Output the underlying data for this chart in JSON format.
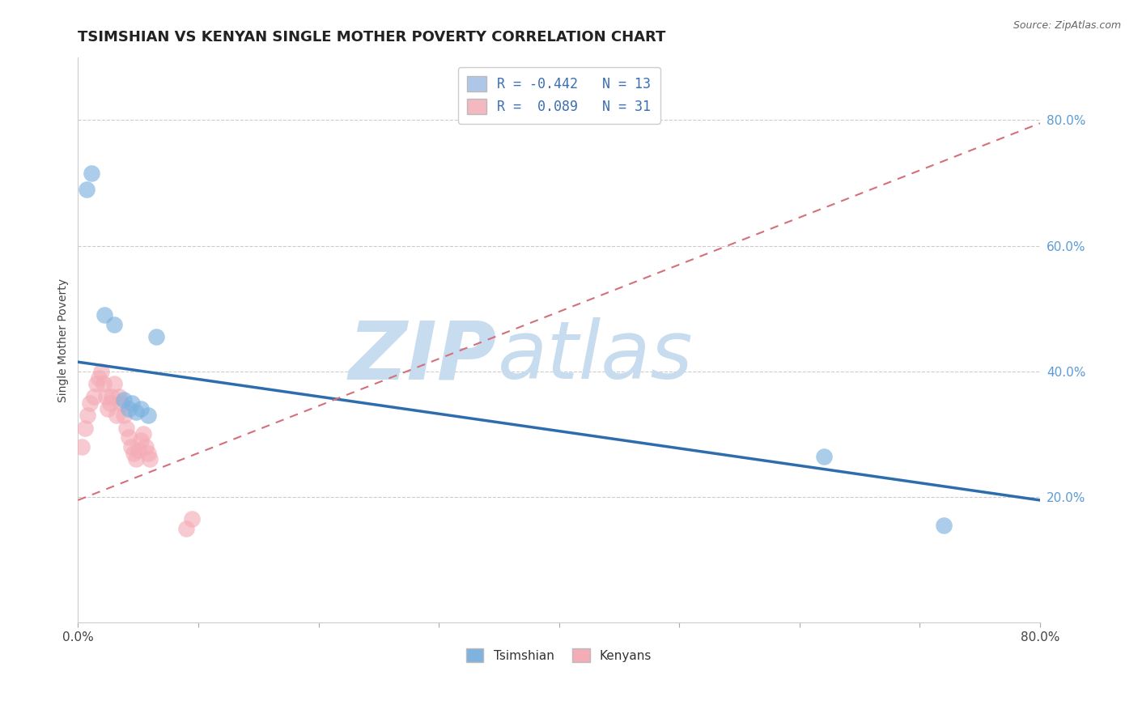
{
  "title": "TSIMSHIAN VS KENYAN SINGLE MOTHER POVERTY CORRELATION CHART",
  "source_text": "Source: ZipAtlas.com",
  "ylabel": "Single Mother Poverty",
  "watermark_zip": "ZIP",
  "watermark_atlas": "atlas",
  "xlim": [
    0.0,
    0.8
  ],
  "ylim": [
    0.0,
    0.9
  ],
  "ytick_right_labels": [
    "20.0%",
    "40.0%",
    "60.0%",
    "80.0%"
  ],
  "ytick_right_vals": [
    0.2,
    0.4,
    0.6,
    0.8
  ],
  "legend_r1": "R = -0.442   N = 13",
  "legend_r2": "R =  0.089   N = 31",
  "legend_color1": "#aec6e8",
  "legend_color2": "#f4b8c1",
  "tsimshian_x": [
    0.007,
    0.011,
    0.022,
    0.03,
    0.038,
    0.042,
    0.045,
    0.048,
    0.052,
    0.058,
    0.065,
    0.62,
    0.72
  ],
  "tsimshian_y": [
    0.69,
    0.715,
    0.49,
    0.475,
    0.355,
    0.34,
    0.35,
    0.335,
    0.34,
    0.33,
    0.455,
    0.265,
    0.155
  ],
  "kenyan_x": [
    0.003,
    0.006,
    0.008,
    0.01,
    0.013,
    0.015,
    0.017,
    0.019,
    0.021,
    0.023,
    0.025,
    0.027,
    0.028,
    0.03,
    0.032,
    0.034,
    0.036,
    0.038,
    0.04,
    0.042,
    0.044,
    0.046,
    0.048,
    0.05,
    0.052,
    0.054,
    0.056,
    0.058,
    0.06,
    0.09,
    0.095
  ],
  "kenyan_y": [
    0.28,
    0.31,
    0.33,
    0.35,
    0.36,
    0.38,
    0.39,
    0.4,
    0.38,
    0.36,
    0.34,
    0.35,
    0.36,
    0.38,
    0.33,
    0.36,
    0.35,
    0.33,
    0.31,
    0.295,
    0.28,
    0.27,
    0.26,
    0.275,
    0.29,
    0.3,
    0.28,
    0.27,
    0.26,
    0.15,
    0.165
  ],
  "blue_scatter_color": "#7EB3E0",
  "pink_scatter_color": "#F4ACB7",
  "blue_line_color": "#2E6DAD",
  "pink_line_color": "#D4707C",
  "grid_color": "#CCCCCC",
  "background_color": "#FFFFFF",
  "watermark_color": "#C8DCF0",
  "title_fontsize": 13,
  "axis_label_fontsize": 10,
  "scatter_size": 220,
  "scatter_alpha": 0.65,
  "blue_line_start_y": 0.415,
  "blue_line_end_y": 0.195,
  "pink_line_start_y": 0.195,
  "pink_line_end_y": 0.795
}
